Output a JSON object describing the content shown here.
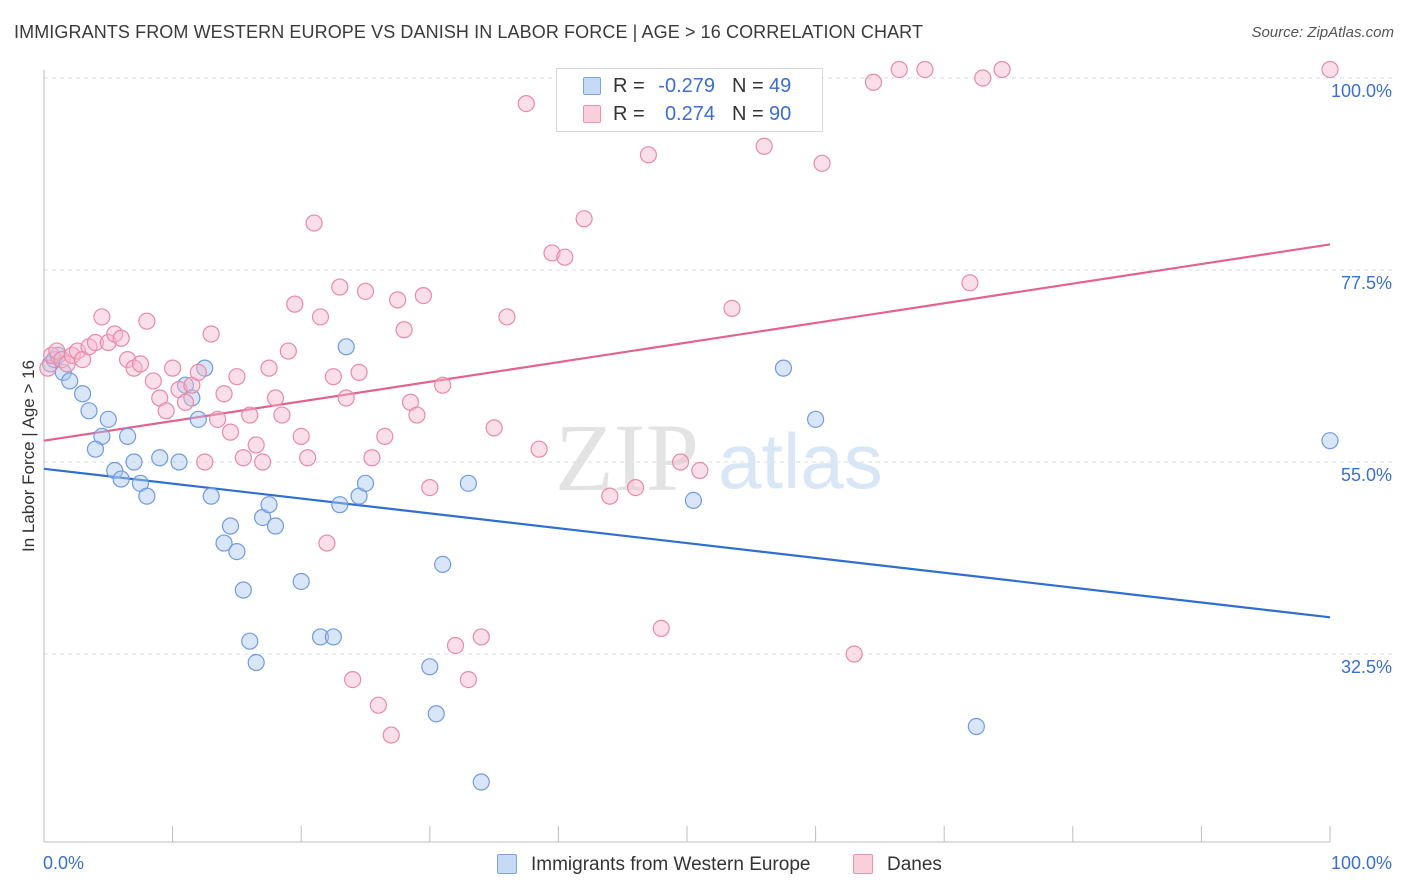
{
  "title": "IMMIGRANTS FROM WESTERN EUROPE VS DANISH IN LABOR FORCE | AGE > 16 CORRELATION CHART",
  "source": "Source: ZipAtlas.com",
  "watermark": {
    "zip": "ZIP",
    "atlas": "atlas"
  },
  "colors": {
    "blue_fill": "#a9c8f0",
    "blue_stroke": "#6f9be0",
    "blue_line": "#2f6fd0",
    "pink_fill": "#f6b8cc",
    "pink_stroke": "#e88aa8",
    "pink_line": "#e3628e",
    "tick_label": "#3a6fcf",
    "grid": "#dcdcdc"
  },
  "legend": {
    "rows": [
      {
        "r_label": "R =",
        "r_value": "-0.279",
        "n_label": "N =",
        "n_value": "49"
      },
      {
        "r_label": "R =",
        "r_value": "0.274",
        "n_label": "N =",
        "n_value": "90"
      }
    ]
  },
  "chart_data": {
    "type": "scatter",
    "title": "IMMIGRANTS FROM WESTERN EUROPE VS DANISH IN LABOR FORCE | AGE > 16 CORRELATION CHART",
    "xlabel": "",
    "ylabel": "In Labor Force | Age > 16",
    "xlim": [
      0,
      100
    ],
    "ylim": [
      15,
      102
    ],
    "x_tick_labels": [
      "0.0%",
      "100.0%"
    ],
    "y_ticks": [
      32.5,
      55.0,
      77.5,
      100.0
    ],
    "y_tick_labels": [
      "32.5%",
      "55.0%",
      "77.5%",
      "100.0%"
    ],
    "grid": true,
    "legend_position": "top-center",
    "series": [
      {
        "name": "Immigrants from Western Europe",
        "color": "blue",
        "r": -0.279,
        "n": 49,
        "trend": {
          "x": [
            0,
            100
          ],
          "y": [
            54.2,
            36.8
          ]
        },
        "points": [
          [
            0.5,
            66.5
          ],
          [
            0.8,
            67.0
          ],
          [
            1.1,
            67.5
          ],
          [
            1.5,
            65.5
          ],
          [
            2.0,
            64.5
          ],
          [
            3.0,
            63.0
          ],
          [
            3.5,
            61.0
          ],
          [
            4.5,
            58.0
          ],
          [
            5.0,
            60.0
          ],
          [
            6.5,
            58.0
          ],
          [
            4.0,
            56.5
          ],
          [
            5.5,
            54.0
          ],
          [
            6.0,
            53.0
          ],
          [
            7.0,
            55.0
          ],
          [
            7.5,
            52.5
          ],
          [
            8.0,
            51.0
          ],
          [
            9.0,
            55.5
          ],
          [
            10.5,
            55.0
          ],
          [
            11.0,
            64.0
          ],
          [
            11.5,
            62.5
          ],
          [
            12.0,
            60.0
          ],
          [
            12.5,
            66.0
          ],
          [
            13.0,
            51.0
          ],
          [
            14.0,
            45.5
          ],
          [
            14.5,
            47.5
          ],
          [
            15.0,
            44.5
          ],
          [
            15.5,
            40.0
          ],
          [
            16.0,
            34.0
          ],
          [
            16.5,
            31.5
          ],
          [
            17.0,
            48.5
          ],
          [
            17.5,
            50.0
          ],
          [
            18.0,
            47.5
          ],
          [
            20.0,
            41.0
          ],
          [
            21.5,
            34.5
          ],
          [
            22.5,
            34.5
          ],
          [
            23.0,
            50.0
          ],
          [
            23.5,
            68.5
          ],
          [
            24.5,
            51.0
          ],
          [
            25.0,
            52.5
          ],
          [
            30.0,
            31.0
          ],
          [
            30.5,
            25.5
          ],
          [
            31.0,
            43.0
          ],
          [
            33.0,
            52.5
          ],
          [
            34.0,
            17.5
          ],
          [
            50.5,
            50.5
          ],
          [
            57.5,
            66.0
          ],
          [
            60.0,
            60.0
          ],
          [
            72.5,
            24.0
          ],
          [
            100.0,
            57.5
          ]
        ]
      },
      {
        "name": "Danes",
        "color": "pink",
        "r": 0.274,
        "n": 90,
        "trend": {
          "x": [
            0,
            100
          ],
          "y": [
            57.5,
            80.5
          ]
        },
        "points": [
          [
            0.3,
            66.0
          ],
          [
            0.6,
            67.5
          ],
          [
            1.0,
            68.0
          ],
          [
            1.4,
            67.0
          ],
          [
            1.8,
            66.5
          ],
          [
            2.2,
            67.5
          ],
          [
            2.6,
            68.0
          ],
          [
            3.0,
            67.0
          ],
          [
            3.5,
            68.5
          ],
          [
            4.0,
            69.0
          ],
          [
            4.5,
            72.0
          ],
          [
            5.0,
            69.0
          ],
          [
            5.5,
            70.0
          ],
          [
            6.0,
            69.5
          ],
          [
            6.5,
            67.0
          ],
          [
            7.0,
            66.0
          ],
          [
            7.5,
            66.5
          ],
          [
            8.0,
            71.5
          ],
          [
            8.5,
            64.5
          ],
          [
            9.0,
            62.5
          ],
          [
            9.5,
            61.0
          ],
          [
            10.0,
            66.0
          ],
          [
            10.5,
            63.5
          ],
          [
            11.0,
            62.0
          ],
          [
            11.5,
            64.0
          ],
          [
            12.0,
            65.5
          ],
          [
            12.5,
            55.0
          ],
          [
            13.0,
            70.0
          ],
          [
            13.5,
            60.0
          ],
          [
            14.0,
            63.0
          ],
          [
            14.5,
            58.5
          ],
          [
            15.0,
            65.0
          ],
          [
            15.5,
            55.5
          ],
          [
            16.0,
            60.5
          ],
          [
            16.5,
            57.0
          ],
          [
            17.0,
            55.0
          ],
          [
            17.5,
            66.0
          ],
          [
            18.0,
            62.5
          ],
          [
            18.5,
            60.5
          ],
          [
            19.0,
            68.0
          ],
          [
            19.5,
            73.5
          ],
          [
            20.0,
            58.0
          ],
          [
            20.5,
            55.5
          ],
          [
            21.0,
            83.0
          ],
          [
            21.5,
            72.0
          ],
          [
            22.0,
            45.5
          ],
          [
            22.5,
            65.0
          ],
          [
            23.0,
            75.5
          ],
          [
            23.5,
            62.5
          ],
          [
            24.0,
            29.5
          ],
          [
            24.5,
            65.5
          ],
          [
            25.0,
            75.0
          ],
          [
            25.5,
            55.5
          ],
          [
            26.0,
            26.5
          ],
          [
            26.5,
            58.0
          ],
          [
            27.0,
            23.0
          ],
          [
            27.5,
            74.0
          ],
          [
            28.0,
            70.5
          ],
          [
            28.5,
            62.0
          ],
          [
            29.0,
            60.5
          ],
          [
            29.5,
            74.5
          ],
          [
            30.0,
            52.0
          ],
          [
            31.0,
            64.0
          ],
          [
            32.0,
            33.5
          ],
          [
            33.0,
            29.5
          ],
          [
            34.0,
            34.5
          ],
          [
            35.0,
            59.0
          ],
          [
            36.0,
            72.0
          ],
          [
            37.5,
            97.0
          ],
          [
            38.5,
            56.5
          ],
          [
            39.5,
            79.5
          ],
          [
            40.5,
            79.0
          ],
          [
            42.0,
            83.5
          ],
          [
            44.0,
            51.0
          ],
          [
            46.0,
            52.0
          ],
          [
            47.0,
            91.0
          ],
          [
            48.0,
            35.5
          ],
          [
            49.5,
            55.0
          ],
          [
            51.0,
            54.0
          ],
          [
            53.5,
            73.0
          ],
          [
            56.0,
            92.0
          ],
          [
            60.5,
            90.0
          ],
          [
            63.0,
            32.5
          ],
          [
            64.5,
            99.5
          ],
          [
            66.5,
            101.0
          ],
          [
            68.5,
            101.0
          ],
          [
            72.0,
            76.0
          ],
          [
            73.0,
            100.0
          ],
          [
            74.5,
            101.0
          ],
          [
            100.0,
            101.0
          ]
        ]
      }
    ]
  },
  "bottom_legend": [
    {
      "label": "Immigrants from Western Europe"
    },
    {
      "label": "Danes"
    }
  ]
}
